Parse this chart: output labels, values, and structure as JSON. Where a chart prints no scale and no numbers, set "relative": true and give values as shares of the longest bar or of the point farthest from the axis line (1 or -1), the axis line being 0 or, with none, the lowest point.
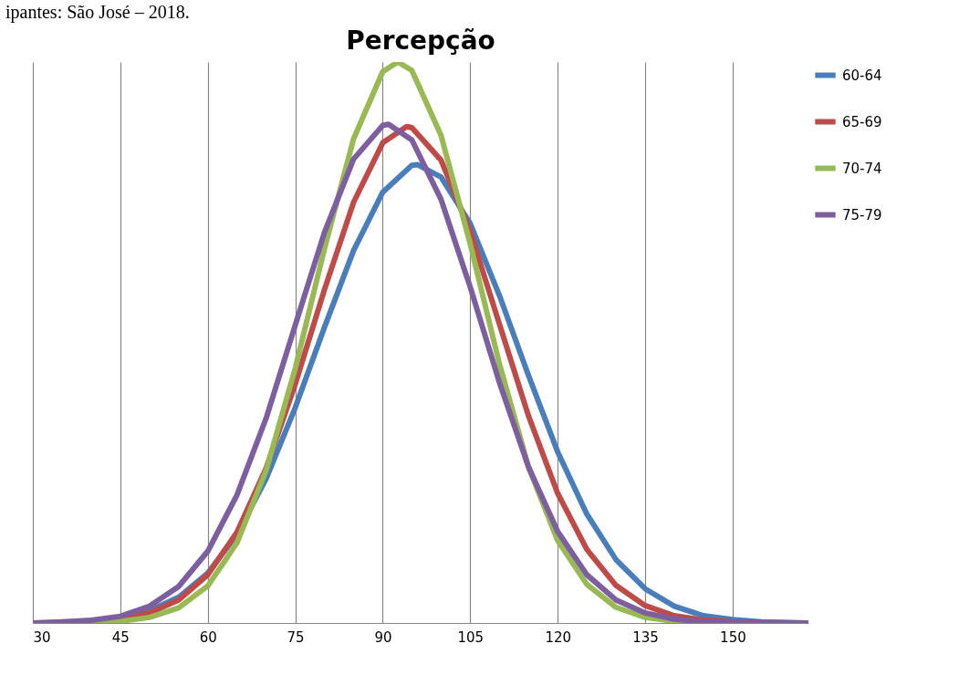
{
  "chart_data": {
    "type": "line",
    "title": "Percepção",
    "annotations": [
      "ipantes: São José – 2018."
    ],
    "relative": true,
    "xlim": [
      30,
      163
    ],
    "xticks": [
      30,
      45,
      60,
      75,
      90,
      105,
      120,
      135,
      150
    ],
    "grid": "x",
    "legend": "right",
    "tick_labels": "x",
    "series": [
      {
        "name": "60-64",
        "color": "#4a7ebb",
        "x": [
          30,
          35,
          40,
          45,
          50,
          55,
          60,
          65,
          70,
          75,
          80,
          85,
          90,
          95,
          96,
          100,
          105,
          110,
          115,
          120,
          125,
          130,
          135,
          140,
          145,
          150,
          155,
          160,
          163
        ],
        "values": [
          0.0,
          0.001,
          0.004,
          0.01,
          0.022,
          0.046,
          0.089,
          0.158,
          0.257,
          0.384,
          0.527,
          0.664,
          0.768,
          0.816,
          0.817,
          0.795,
          0.712,
          0.584,
          0.441,
          0.305,
          0.194,
          0.113,
          0.061,
          0.03,
          0.013,
          0.006,
          0.002,
          0.001,
          0.0
        ]
      },
      {
        "name": "65-69",
        "color": "#be4b48",
        "x": [
          40,
          45,
          50,
          55,
          60,
          65,
          70,
          75,
          80,
          85,
          90,
          94.1,
          95,
          100,
          105,
          110,
          115,
          120,
          125,
          130,
          135,
          140,
          145,
          150,
          155,
          160,
          163
        ],
        "values": [
          0.002,
          0.007,
          0.018,
          0.041,
          0.086,
          0.162,
          0.276,
          0.426,
          0.594,
          0.75,
          0.856,
          0.885,
          0.883,
          0.825,
          0.698,
          0.533,
          0.369,
          0.231,
          0.131,
          0.067,
          0.031,
          0.013,
          0.005,
          0.002,
          0.001,
          0.0,
          0.0
        ]
      },
      {
        "name": "70-74",
        "color": "#98b954",
        "x": [
          30,
          35,
          40,
          45,
          50,
          55,
          60,
          65,
          70,
          75,
          80,
          85,
          90,
          92.6,
          95,
          100,
          105,
          110,
          115,
          120,
          125,
          130,
          135,
          140,
          145
        ],
        "values": [
          0.0,
          0.0,
          0.001,
          0.003,
          0.01,
          0.027,
          0.066,
          0.143,
          0.272,
          0.454,
          0.667,
          0.863,
          0.983,
          1.0,
          0.985,
          0.869,
          0.676,
          0.462,
          0.278,
          0.147,
          0.069,
          0.028,
          0.01,
          0.003,
          0.001
        ]
      },
      {
        "name": "75-79",
        "color": "#7d5fa0",
        "x": [
          30,
          35,
          40,
          45,
          50,
          55,
          60,
          65,
          70,
          75,
          80,
          85,
          90,
          91,
          95,
          100,
          105,
          110,
          115,
          120,
          125,
          130,
          135,
          140,
          145,
          150,
          155,
          160,
          163
        ],
        "values": [
          0.0,
          0.002,
          0.005,
          0.012,
          0.03,
          0.065,
          0.128,
          0.228,
          0.365,
          0.531,
          0.696,
          0.827,
          0.887,
          0.889,
          0.861,
          0.755,
          0.599,
          0.429,
          0.278,
          0.163,
          0.086,
          0.041,
          0.018,
          0.007,
          0.002,
          0.001,
          0.0,
          0.0,
          0.0
        ]
      }
    ]
  }
}
